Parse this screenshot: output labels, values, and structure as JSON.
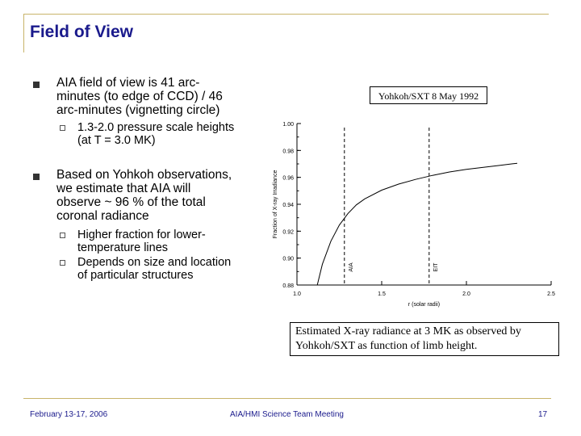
{
  "slide": {
    "title": "Field of View",
    "bullets": [
      {
        "lines": [
          "AIA field of view is 41 arc-",
          "minutes (to edge of CCD) / 46",
          "arc-minutes (vignetting circle)"
        ],
        "subs": [
          {
            "lines": [
              "1.3-2.0 pressure scale heights",
              "(at T = 3.0 MK)"
            ]
          }
        ]
      },
      {
        "lines": [
          "Based on Yohkoh observations,",
          "we estimate that AIA will",
          "observe ~ 96 % of the total",
          "coronal radiance"
        ],
        "subs": [
          {
            "lines": [
              "Higher fraction for lower-",
              "temperature lines"
            ]
          },
          {
            "lines": [
              "Depends on size and location",
              "of particular structures"
            ]
          }
        ]
      }
    ],
    "caption": [
      "Estimated X-ray radiance at 3 MK as observed by",
      "Yohkoh/SXT as function of limb height."
    ],
    "footer": {
      "date": "February 13-17, 2006",
      "meeting": "AIA/HMI Science Team Meeting",
      "page": "17"
    },
    "colors": {
      "title": "#1a1a8c",
      "frame": "#c8b46a"
    }
  },
  "chart_data": {
    "type": "line",
    "title": "Yohkoh/SXT 8 May 1992",
    "xlabel": "r (solar radii)",
    "ylabel": "Fraction of X-ray Irradiance",
    "xlim": [
      1.0,
      2.5
    ],
    "ylim": [
      0.88,
      1.0
    ],
    "xticks": [
      1.0,
      1.5,
      2.0,
      2.5
    ],
    "xtick_labels": [
      "1.0",
      "1.5",
      "2.0",
      "2.5"
    ],
    "yticks": [
      0.88,
      0.9,
      0.92,
      0.94,
      0.96,
      0.98,
      1.0
    ],
    "ytick_labels": [
      "0.88",
      "0.90",
      "0.92",
      "0.94",
      "0.96",
      "0.98",
      "1.00"
    ],
    "series": [
      {
        "x": [
          1.12,
          1.15,
          1.2,
          1.25,
          1.3,
          1.35,
          1.4,
          1.5,
          1.6,
          1.7,
          1.8,
          1.9,
          2.0,
          2.1,
          2.2,
          2.3
        ],
        "y": [
          0.88,
          0.8955,
          0.9125,
          0.9245,
          0.933,
          0.9395,
          0.944,
          0.9505,
          0.955,
          0.9585,
          0.9615,
          0.964,
          0.966,
          0.9675,
          0.969,
          0.9705
        ]
      }
    ],
    "annotations": [
      {
        "label": "AIA",
        "x": 1.28
      },
      {
        "label": "EIT",
        "x": 1.78
      }
    ]
  }
}
